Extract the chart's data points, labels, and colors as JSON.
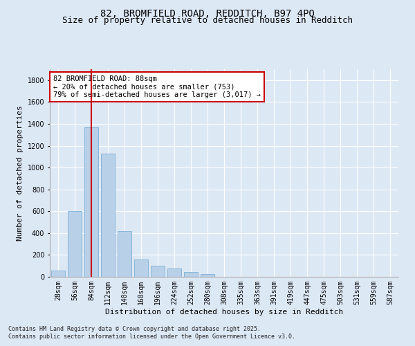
{
  "title1": "82, BROMFIELD ROAD, REDDITCH, B97 4PQ",
  "title2": "Size of property relative to detached houses in Redditch",
  "xlabel": "Distribution of detached houses by size in Redditch",
  "ylabel": "Number of detached properties",
  "categories": [
    "28sqm",
    "56sqm",
    "84sqm",
    "112sqm",
    "140sqm",
    "168sqm",
    "196sqm",
    "224sqm",
    "252sqm",
    "280sqm",
    "308sqm",
    "335sqm",
    "363sqm",
    "391sqm",
    "419sqm",
    "447sqm",
    "475sqm",
    "503sqm",
    "531sqm",
    "559sqm",
    "587sqm"
  ],
  "values": [
    55,
    600,
    1370,
    1130,
    420,
    160,
    100,
    75,
    45,
    25,
    0,
    0,
    0,
    0,
    0,
    0,
    0,
    0,
    0,
    0,
    0
  ],
  "bar_color": "#b8d0e8",
  "bar_edge_color": "#7aafd4",
  "vline_x_index": 2,
  "vline_color": "#cc0000",
  "annotation_box_text": "82 BROMFIELD ROAD: 88sqm\n← 20% of detached houses are smaller (753)\n79% of semi-detached houses are larger (3,017) →",
  "ylim": [
    0,
    1900
  ],
  "yticks": [
    0,
    200,
    400,
    600,
    800,
    1000,
    1200,
    1400,
    1600,
    1800
  ],
  "background_color": "#dde8f5",
  "plot_background": "#dde8f5",
  "footer1": "Contains HM Land Registry data © Crown copyright and database right 2025.",
  "footer2": "Contains public sector information licensed under the Open Government Licence v3.0.",
  "title_fontsize": 10,
  "subtitle_fontsize": 9,
  "axis_label_fontsize": 8,
  "tick_fontsize": 7,
  "footer_fontsize": 6,
  "annotation_fontsize": 7.5
}
